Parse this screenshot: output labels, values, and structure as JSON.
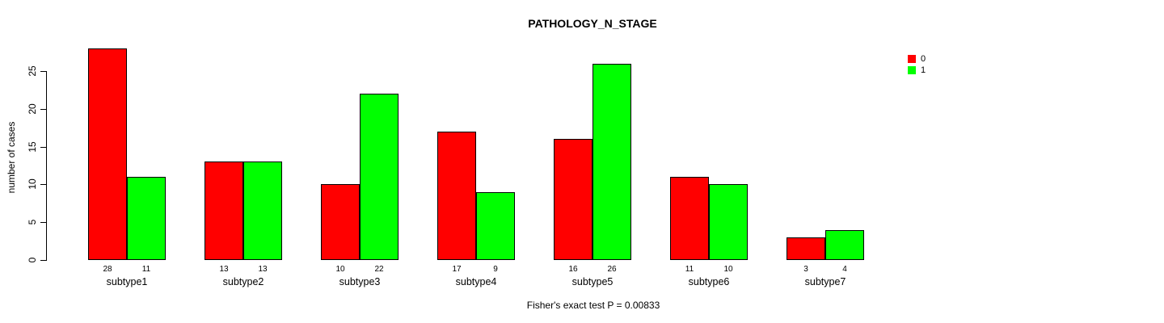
{
  "chart_data": {
    "type": "bar",
    "title": "PATHOLOGY_N_STAGE",
    "ylabel": "number of cases",
    "xlabel": "",
    "caption": "Fisher's exact test P = 0.00833",
    "categories": [
      "subtype1",
      "subtype2",
      "subtype3",
      "subtype4",
      "subtype5",
      "subtype6",
      "subtype7"
    ],
    "series": [
      {
        "name": "0",
        "color": "#ff0000",
        "values": [
          28,
          13,
          10,
          17,
          16,
          11,
          3
        ]
      },
      {
        "name": "1",
        "color": "#00ff00",
        "values": [
          11,
          13,
          22,
          9,
          26,
          10,
          4
        ]
      }
    ],
    "bar_count_labels": [
      [
        28,
        13,
        10,
        17,
        16,
        11,
        3
      ],
      [
        11,
        13,
        22,
        9,
        26,
        10,
        4
      ]
    ],
    "yticks": [
      0,
      5,
      10,
      15,
      20,
      25
    ],
    "ylim": [
      0,
      28
    ],
    "grid": false,
    "legend_position": "topright",
    "axis_color": "#000000",
    "bar_border_color": "#000000"
  }
}
